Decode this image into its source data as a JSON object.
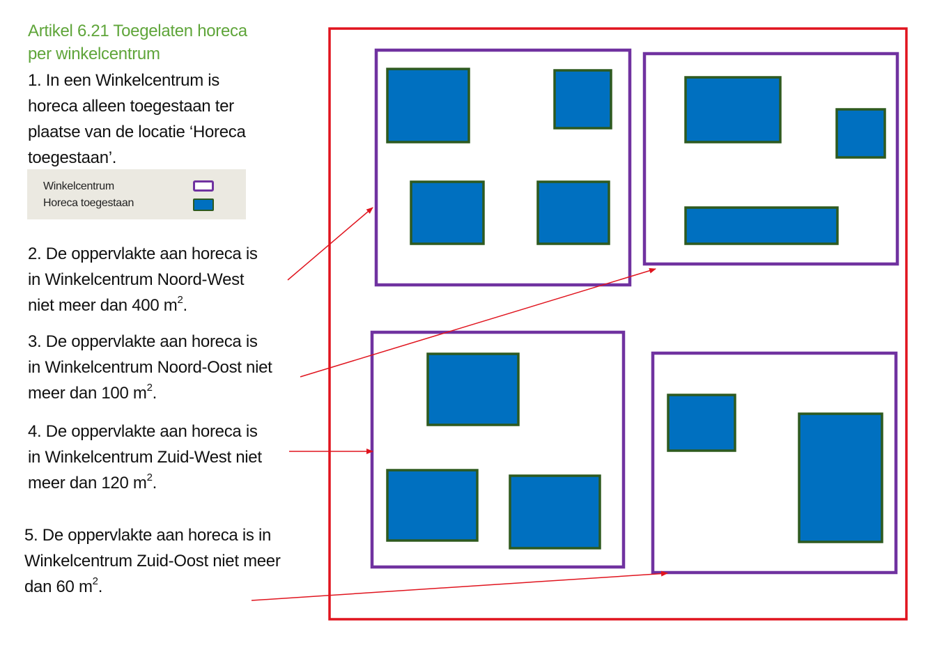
{
  "heading": {
    "line1": "Artikel 6.21 Toegelaten horeca",
    "line2": "per winkelcentrum"
  },
  "rule1": {
    "line1": "1. In een Winkelcentrum is",
    "line2": "horeca alleen toegestaan ter",
    "line3": "plaatse van de locatie ‘Horeca",
    "line4": "toegestaan’."
  },
  "legend": {
    "item1": "Winkelcentrum",
    "item2": "Horeca toegestaan"
  },
  "rule2": {
    "line1": "2. De oppervlakte aan horeca is",
    "line2": "in Winkelcentrum Noord-West",
    "line3_prefix": "niet meer dan 400 m",
    "sup": "2",
    "suffix": "."
  },
  "rule3": {
    "line1": "3. De oppervlakte aan horeca is",
    "line2": "in Winkelcentrum Noord-Oost niet",
    "line3_prefix": "meer dan 100 m",
    "sup": "2",
    "suffix": "."
  },
  "rule4": {
    "line1": "4. De oppervlakte aan horeca is",
    "line2": "in Winkelcentrum Zuid-West niet",
    "line3_prefix": "meer dan 120 m",
    "sup": "2",
    "suffix": "."
  },
  "rule5": {
    "line1": "5. De oppervlakte aan horeca is in",
    "line2": "Winkelcentrum Zuid-Oost niet meer",
    "line3_prefix": "dan 60 m",
    "sup": "2",
    "suffix": "."
  },
  "colors": {
    "heading": "#5fa53a",
    "plan_border": "#e0141e",
    "winkelcentrum": "#7032a0",
    "horeca_fill": "#0070c0",
    "horeca_border": "#2e5a1f",
    "arrow": "#e0141e"
  }
}
